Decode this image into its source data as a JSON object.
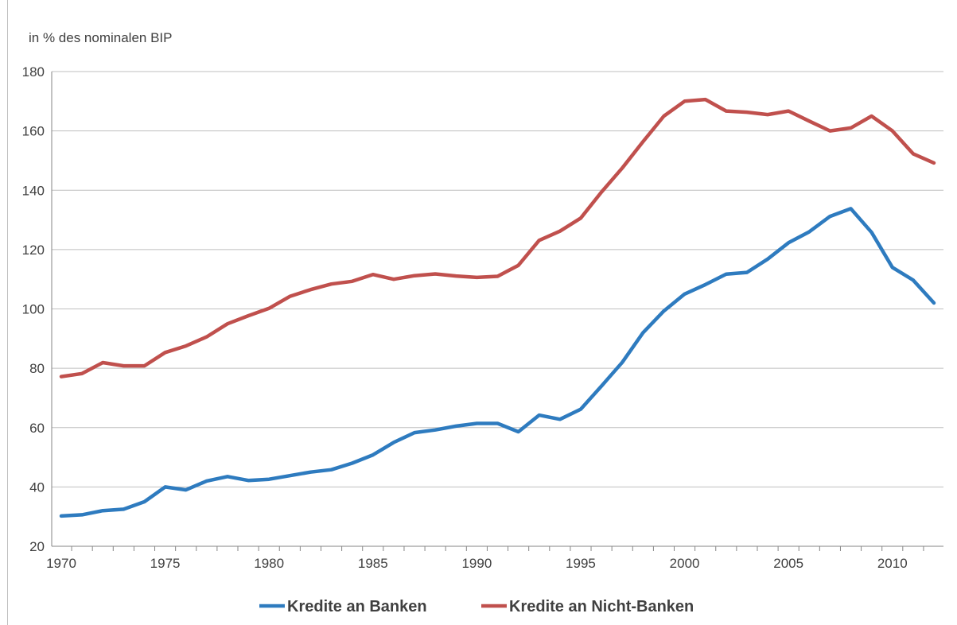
{
  "chart_data": {
    "type": "line",
    "ylabel": "in % des nominalen BIP",
    "xlim": [
      1970,
      2012
    ],
    "ylim": [
      20,
      180
    ],
    "y_ticks": [
      20,
      40,
      60,
      80,
      100,
      120,
      140,
      160,
      180
    ],
    "x_ticks": [
      1970,
      1975,
      1980,
      1985,
      1990,
      1995,
      2000,
      2005,
      2010
    ],
    "grid": "horizontal",
    "legend_position": "bottom",
    "x": [
      1970,
      1971,
      1972,
      1973,
      1974,
      1975,
      1976,
      1977,
      1978,
      1979,
      1980,
      1981,
      1982,
      1983,
      1984,
      1985,
      1986,
      1987,
      1988,
      1989,
      1990,
      1991,
      1992,
      1993,
      1994,
      1995,
      1996,
      1997,
      1998,
      1999,
      2000,
      2001,
      2002,
      2003,
      2004,
      2005,
      2006,
      2007,
      2008,
      2009,
      2010,
      2011,
      2012
    ],
    "series": [
      {
        "name": "Kredite an Banken",
        "color": "#2e7bbf",
        "values": [
          30.2,
          30.6,
          32.0,
          32.5,
          35.0,
          40.0,
          39.0,
          42.0,
          43.5,
          42.2,
          42.6,
          43.8,
          45.0,
          45.8,
          48.0,
          50.8,
          55.0,
          58.3,
          59.2,
          60.5,
          61.4,
          61.4,
          58.6,
          64.2,
          62.8,
          66.2,
          74.0,
          82.0,
          92.0,
          99.3,
          105.0,
          108.2,
          111.7,
          112.3,
          116.8,
          122.3,
          126.0,
          131.2,
          133.8,
          125.8,
          114.0,
          109.7,
          102.0
        ]
      },
      {
        "name": "Kredite an Nicht-Banken",
        "color": "#c0504d",
        "values": [
          77.2,
          78.2,
          81.9,
          80.8,
          80.8,
          85.3,
          87.5,
          90.6,
          95.0,
          97.7,
          100.2,
          104.2,
          106.5,
          108.4,
          109.3,
          111.6,
          110.0,
          111.2,
          111.8,
          111.1,
          110.6,
          111.0,
          114.7,
          123.1,
          126.2,
          130.6,
          139.4,
          147.5,
          156.4,
          165.0,
          170.0,
          170.6,
          166.7,
          166.3,
          165.5,
          166.7,
          163.3,
          160.0,
          161.0,
          165.0,
          160.0,
          152.3,
          149.2
        ]
      }
    ]
  }
}
